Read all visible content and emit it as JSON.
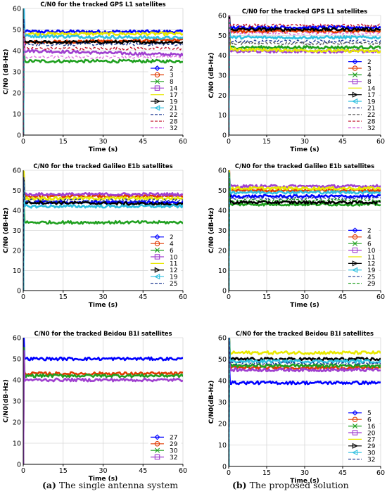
{
  "chart_data": [
    {
      "type": "line",
      "title": "C/N0 for the tracked GPS L1 satellites",
      "xlabel": "Time (s)",
      "ylabel": "C/N0 (dB-Hz)",
      "xlim": [
        0,
        60
      ],
      "ylim": [
        0,
        60
      ],
      "xticks": [
        0,
        15,
        30,
        45,
        60
      ],
      "yticks": [
        0,
        10,
        20,
        30,
        40,
        50,
        60
      ],
      "grid": true,
      "legend": "bottom-right",
      "series": [
        {
          "name": "2",
          "color": "#0000ff",
          "marker": "diamond",
          "values": [
            49,
            49
          ]
        },
        {
          "name": "3",
          "color": "#e03a00",
          "marker": "circle",
          "values": [
            44,
            45
          ]
        },
        {
          "name": "8",
          "color": "#20a020",
          "marker": "x",
          "values": [
            35,
            35
          ]
        },
        {
          "name": "14",
          "color": "#a040d0",
          "marker": "square",
          "values": [
            40,
            38
          ]
        },
        {
          "name": "17",
          "color": "#e8e800",
          "marker": "none",
          "values": [
            48,
            48
          ]
        },
        {
          "name": "19",
          "color": "#000000",
          "marker": "triangle-right",
          "values": [
            44,
            44
          ]
        },
        {
          "name": "21",
          "color": "#30c0e0",
          "marker": "triangle-left",
          "values": [
            47,
            46
          ]
        },
        {
          "name": "22",
          "color": "#1f3a93",
          "marker": "dash",
          "values": [
            43,
            43
          ]
        },
        {
          "name": "28",
          "color": "#c0102a",
          "marker": "dash",
          "values": [
            41,
            41
          ]
        },
        {
          "name": "32",
          "color": "#e070e0",
          "marker": "dash",
          "values": [
            37,
            37
          ]
        }
      ]
    },
    {
      "type": "line",
      "title": "C/N0 for the tracked GPS L1 satellites",
      "xlabel": "Time (s)",
      "ylabel": "C/N0 (dB-Hz)",
      "xlim": [
        0,
        60
      ],
      "ylim": [
        0,
        60
      ],
      "xticks": [
        0,
        15,
        30,
        45,
        60
      ],
      "yticks": [
        0,
        10,
        20,
        30,
        40,
        50,
        60
      ],
      "grid": true,
      "legend": "bottom-right",
      "series": [
        {
          "name": "2",
          "color": "#0000ff",
          "marker": "diamond",
          "values": [
            54,
            54
          ]
        },
        {
          "name": "3",
          "color": "#e03a00",
          "marker": "circle",
          "values": [
            52,
            52
          ]
        },
        {
          "name": "4",
          "color": "#20a020",
          "marker": "x",
          "values": [
            44,
            44
          ]
        },
        {
          "name": "8",
          "color": "#a040d0",
          "marker": "square",
          "values": [
            42,
            42
          ]
        },
        {
          "name": "14",
          "color": "#e8e800",
          "marker": "none",
          "values": [
            43,
            42
          ]
        },
        {
          "name": "17",
          "color": "#000000",
          "marker": "triangle-right",
          "values": [
            53,
            53
          ]
        },
        {
          "name": "19",
          "color": "#30c0e0",
          "marker": "triangle-left",
          "values": [
            49,
            49
          ]
        },
        {
          "name": "21",
          "color": "#1f3a93",
          "marker": "dash",
          "values": [
            47,
            47
          ]
        },
        {
          "name": "22",
          "color": "#5a5a5a",
          "marker": "dash",
          "values": [
            46,
            46
          ]
        },
        {
          "name": "28",
          "color": "#c0102a",
          "marker": "dash",
          "values": [
            55,
            55
          ]
        },
        {
          "name": "32",
          "color": "#e070e0",
          "marker": "dash",
          "values": [
            51,
            51
          ]
        }
      ]
    },
    {
      "type": "line",
      "title": "C/N0 for the tracked Galileo E1b satellites",
      "xlabel": "Time (s)",
      "ylabel": "C/N0 (dB-Hz)",
      "xlim": [
        0,
        60
      ],
      "ylim": [
        0,
        60
      ],
      "xticks": [
        0,
        15,
        30,
        45,
        60
      ],
      "yticks": [
        0,
        10,
        20,
        30,
        40,
        50,
        60
      ],
      "grid": true,
      "legend": "bottom-right",
      "series": [
        {
          "name": "2",
          "color": "#0000ff",
          "marker": "diamond",
          "values": [
            44,
            44
          ]
        },
        {
          "name": "4",
          "color": "#e03a00",
          "marker": "circle",
          "values": [
            47,
            47
          ]
        },
        {
          "name": "6",
          "color": "#20a020",
          "marker": "x",
          "values": [
            34,
            34
          ]
        },
        {
          "name": "10",
          "color": "#a040d0",
          "marker": "square",
          "values": [
            48,
            48
          ]
        },
        {
          "name": "11",
          "color": "#e8e800",
          "marker": "none",
          "values": [
            46,
            46
          ]
        },
        {
          "name": "12",
          "color": "#000000",
          "marker": "triangle-right",
          "values": [
            44,
            43
          ]
        },
        {
          "name": "19",
          "color": "#30c0e0",
          "marker": "triangle-left",
          "values": [
            42,
            42
          ]
        },
        {
          "name": "25",
          "color": "#1f3a93",
          "marker": "dash",
          "values": [
            45,
            45
          ]
        }
      ]
    },
    {
      "type": "line",
      "title": "C/N0 for the tracked Galileo E1b satellites",
      "xlabel": "Time (s)",
      "ylabel": "C/N0 (dB-Hz)",
      "xlim": [
        0,
        60
      ],
      "ylim": [
        0,
        60
      ],
      "xticks": [
        0,
        15,
        30,
        45,
        60
      ],
      "yticks": [
        0,
        10,
        20,
        30,
        40,
        50,
        60
      ],
      "grid": true,
      "legend": "bottom-right",
      "series": [
        {
          "name": "2",
          "color": "#0000ff",
          "marker": "diamond",
          "values": [
            47,
            47
          ]
        },
        {
          "name": "4",
          "color": "#e03a00",
          "marker": "circle",
          "values": [
            50,
            50
          ]
        },
        {
          "name": "6",
          "color": "#20a020",
          "marker": "x",
          "values": [
            43,
            43
          ]
        },
        {
          "name": "10",
          "color": "#a040d0",
          "marker": "square",
          "values": [
            52,
            52
          ]
        },
        {
          "name": "11",
          "color": "#e8e800",
          "marker": "none",
          "values": [
            51,
            51
          ]
        },
        {
          "name": "12",
          "color": "#000000",
          "marker": "triangle-right",
          "values": [
            44,
            44
          ]
        },
        {
          "name": "19",
          "color": "#30c0e0",
          "marker": "triangle-left",
          "values": [
            49,
            49
          ]
        },
        {
          "name": "25",
          "color": "#1f3a93",
          "marker": "dash",
          "values": [
            46,
            46
          ]
        },
        {
          "name": "29",
          "color": "#20a020",
          "marker": "dash",
          "values": [
            45,
            45
          ]
        }
      ]
    },
    {
      "type": "line",
      "title": "C/N0 for the tracked Beidou B1I satellites",
      "xlabel": "Time (s)",
      "ylabel": "C/N0(dB-Hz)",
      "xlim": [
        0,
        60
      ],
      "ylim": [
        0,
        60
      ],
      "xticks": [
        0,
        15,
        30,
        45,
        60
      ],
      "yticks": [
        0,
        10,
        20,
        30,
        40,
        50,
        60
      ],
      "grid": true,
      "legend": "bottom-right",
      "series": [
        {
          "name": "27",
          "color": "#0000ff",
          "marker": "diamond",
          "values": [
            50,
            50
          ]
        },
        {
          "name": "29",
          "color": "#e03a00",
          "marker": "circle",
          "values": [
            43,
            43
          ]
        },
        {
          "name": "30",
          "color": "#20a020",
          "marker": "x",
          "values": [
            42,
            42
          ]
        },
        {
          "name": "32",
          "color": "#a040d0",
          "marker": "square",
          "values": [
            40,
            40
          ]
        }
      ]
    },
    {
      "type": "line",
      "title": "C/N0 for the tracked Beidou B1I satellites",
      "xlabel": "Time (s)",
      "ylabel": "C/N0(dB-Hz)",
      "xlim": [
        0,
        60
      ],
      "ylim": [
        0,
        60
      ],
      "xticks": [
        0,
        15,
        30,
        45,
        60
      ],
      "yticks": [
        0,
        10,
        20,
        30,
        40,
        50,
        60
      ],
      "grid": true,
      "legend": "bottom-right",
      "series": [
        {
          "name": "5",
          "color": "#0000ff",
          "marker": "diamond",
          "values": [
            39,
            39
          ]
        },
        {
          "name": "6",
          "color": "#e03a00",
          "marker": "circle",
          "values": [
            46,
            46
          ]
        },
        {
          "name": "16",
          "color": "#20a020",
          "marker": "x",
          "values": [
            47,
            47
          ]
        },
        {
          "name": "20",
          "color": "#a040d0",
          "marker": "square",
          "values": [
            45,
            45
          ]
        },
        {
          "name": "27",
          "color": "#e8e800",
          "marker": "none",
          "values": [
            53,
            53
          ]
        },
        {
          "name": "29",
          "color": "#000000",
          "marker": "triangle-right",
          "values": [
            50,
            50
          ]
        },
        {
          "name": "30",
          "color": "#30c0e0",
          "marker": "triangle-left",
          "values": [
            49,
            49
          ]
        },
        {
          "name": "32",
          "color": "#1f3a93",
          "marker": "dash",
          "values": [
            48,
            48
          ]
        }
      ]
    }
  ],
  "captions": [
    {
      "tag": "(a)",
      "text": "The single antenna system"
    },
    {
      "tag": "(b)",
      "text": "The proposed solution"
    }
  ]
}
